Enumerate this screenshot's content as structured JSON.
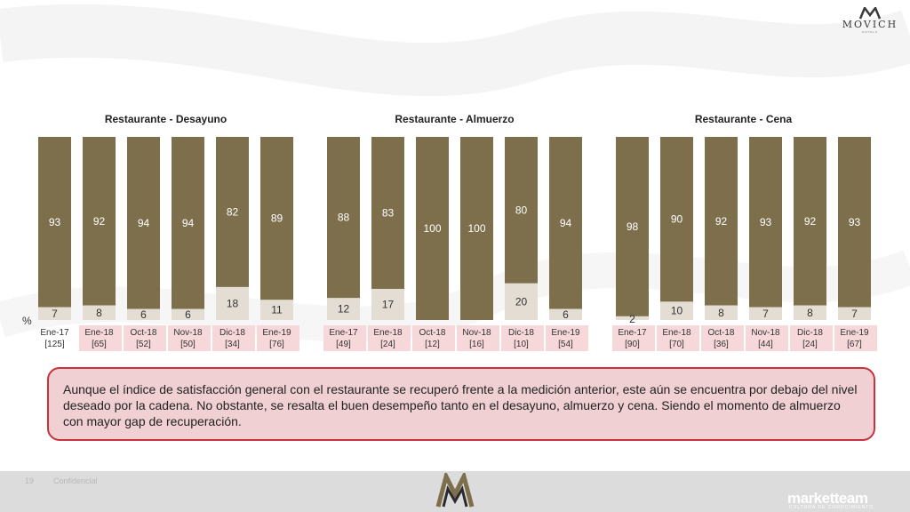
{
  "brand": {
    "name": "MOVICH",
    "subtitle": "HOTELS"
  },
  "percent_symbol": "%",
  "note": "Aunque el índice de satisfacción general con el restaurante se recuperó frente a la medición anterior, este aún se encuentra por debajo del nivel deseado por la cadena. No obstante, se resalta el buen desempeño tanto en el desayuno, almuerzo y cena. Siendo el momento de almuerzo con mayor gap de recuperación.",
  "footer": {
    "page": "19",
    "confidential": "Confidencial",
    "company": "marketteam",
    "company_sub": "CULTURA DE CONOCIMIENTO"
  },
  "colors": {
    "satisfied": "#7d6e4c",
    "unsatisfied": "#e3ddd3",
    "highlight_label_bg": "#f6d7da",
    "note_border": "#c8323c",
    "note_bg": "#f0d0d3"
  },
  "chart_data": [
    {
      "type": "bar",
      "stacked": true,
      "title": "Restaurante - Desayuno",
      "categories": [
        "Ene-17",
        "Ene-18",
        "Oct-18",
        "Nov-18",
        "Dic-18",
        "Ene-19"
      ],
      "sample_sizes": [
        "[125]",
        "[65]",
        "[52]",
        "[50]",
        "[34]",
        "[76]"
      ],
      "highlighted": [
        false,
        true,
        true,
        true,
        true,
        true
      ],
      "series": [
        {
          "values": [
            93,
            92,
            94,
            94,
            82,
            89
          ],
          "color": "#7d6e4c"
        },
        {
          "values": [
            7,
            8,
            6,
            6,
            18,
            11
          ],
          "color": "#e3ddd3"
        }
      ],
      "ylim": [
        0,
        100
      ]
    },
    {
      "type": "bar",
      "stacked": true,
      "title": "Restaurante - Almuerzo",
      "categories": [
        "Ene-17",
        "Ene-18",
        "Oct-18",
        "Nov-18",
        "Dic-18",
        "Ene-19"
      ],
      "sample_sizes": [
        "[49]",
        "[24]",
        "[12]",
        "[16]",
        "[10]",
        "[54]"
      ],
      "highlighted": [
        true,
        true,
        true,
        true,
        true,
        true
      ],
      "series": [
        {
          "values": [
            88,
            83,
            100,
            100,
            80,
            94
          ],
          "color": "#7d6e4c"
        },
        {
          "values": [
            12,
            17,
            null,
            null,
            20,
            6
          ],
          "color": "#e3ddd3"
        }
      ],
      "ylim": [
        0,
        100
      ]
    },
    {
      "type": "bar",
      "stacked": true,
      "title": "Restaurante - Cena",
      "categories": [
        "Ene-17",
        "Ene-18",
        "Oct-18",
        "Nov-18",
        "Dic-18",
        "Ene-19"
      ],
      "sample_sizes": [
        "[90]",
        "[70]",
        "[36]",
        "[44]",
        "[24]",
        "[67]"
      ],
      "highlighted": [
        true,
        true,
        true,
        true,
        true,
        true
      ],
      "series": [
        {
          "values": [
            98,
            90,
            92,
            93,
            92,
            93
          ],
          "color": "#7d6e4c"
        },
        {
          "values": [
            2,
            10,
            8,
            7,
            8,
            7
          ],
          "color": "#e3ddd3"
        }
      ],
      "ylim": [
        0,
        100
      ]
    }
  ]
}
